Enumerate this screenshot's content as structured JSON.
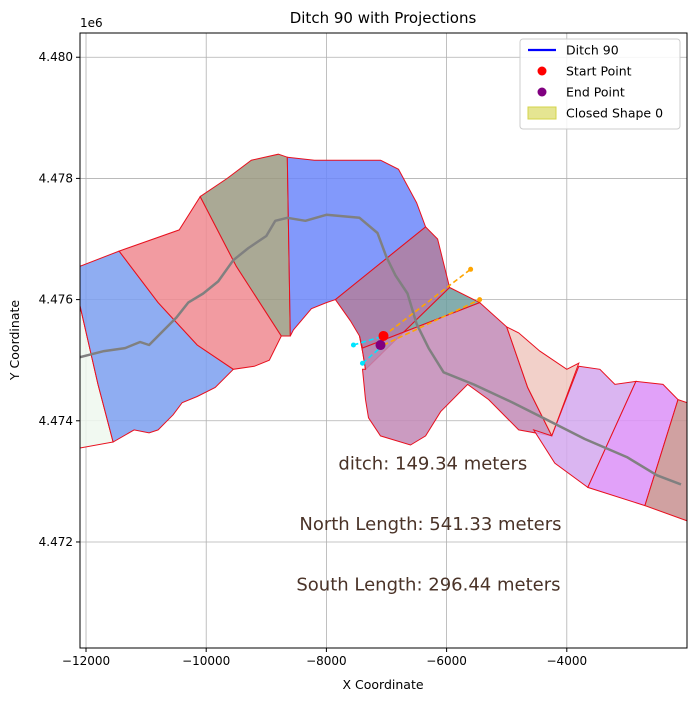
{
  "chart_data": {
    "type": "map-plot",
    "title": "Ditch 90 with Projections",
    "xlabel": "X Coordinate",
    "ylabel": "Y Coordinate",
    "y_offset_label": "1e6",
    "xlim": [
      -12100,
      -2000
    ],
    "ylim": [
      4470250,
      4480400
    ],
    "x_ticks": [
      {
        "value": -12000,
        "label": "−12000"
      },
      {
        "value": -10000,
        "label": "−10000"
      },
      {
        "value": -8000,
        "label": "−8000"
      },
      {
        "value": -6000,
        "label": "−6000"
      },
      {
        "value": -4000,
        "label": "−4000"
      }
    ],
    "y_ticks": [
      {
        "value": 4472000,
        "label": "4.472"
      },
      {
        "value": 4474000,
        "label": "4.474"
      },
      {
        "value": 4476000,
        "label": "4.476"
      },
      {
        "value": 4478000,
        "label": "4.478"
      },
      {
        "value": 4480000,
        "label": "4.480"
      }
    ],
    "grid": true,
    "legend": {
      "position": "top-right",
      "entries": [
        {
          "label": "Ditch 90",
          "kind": "line",
          "color": "#0000ff"
        },
        {
          "label": "Start Point",
          "kind": "marker",
          "color": "#ff0000"
        },
        {
          "label": "End Point",
          "kind": "marker",
          "color": "#800080"
        },
        {
          "label": "Closed Shape 0",
          "kind": "patch",
          "color": "#d4d44a"
        }
      ]
    },
    "polygons": [
      {
        "name": "poly-0",
        "color": "#eef8ee",
        "points": [
          [
            -12100,
            4475900
          ],
          [
            -11800,
            4474600
          ],
          [
            -11550,
            4473650
          ],
          [
            -12100,
            4473550
          ]
        ]
      },
      {
        "name": "poly-1",
        "color": "#7b9ff0",
        "points": [
          [
            -12100,
            4476550
          ],
          [
            -11450,
            4476800
          ],
          [
            -10800,
            4475950
          ],
          [
            -10150,
            4475250
          ],
          [
            -9550,
            4474850
          ],
          [
            -9850,
            4474550
          ],
          [
            -10150,
            4474400
          ],
          [
            -10400,
            4474300
          ],
          [
            -10550,
            4474100
          ],
          [
            -10650,
            4474000
          ],
          [
            -10800,
            4473850
          ],
          [
            -10950,
            4473800
          ],
          [
            -11200,
            4473850
          ],
          [
            -11550,
            4473650
          ],
          [
            -11800,
            4474600
          ],
          [
            -12100,
            4475900
          ]
        ]
      },
      {
        "name": "poly-2",
        "color": "#f08a90",
        "points": [
          [
            -11450,
            4476800
          ],
          [
            -10450,
            4477150
          ],
          [
            -10100,
            4477700
          ],
          [
            -9500,
            4476550
          ],
          [
            -8750,
            4475400
          ],
          [
            -8950,
            4475000
          ],
          [
            -9200,
            4474900
          ],
          [
            -9550,
            4474850
          ],
          [
            -10150,
            4475250
          ],
          [
            -10800,
            4475950
          ]
        ]
      },
      {
        "name": "poly-3",
        "color": "#9b9a82",
        "points": [
          [
            -10100,
            4477700
          ],
          [
            -9650,
            4478000
          ],
          [
            -9250,
            4478300
          ],
          [
            -8800,
            4478400
          ],
          [
            -8650,
            4478350
          ],
          [
            -8600,
            4475400
          ],
          [
            -8750,
            4475400
          ],
          [
            -9500,
            4476550
          ]
        ]
      },
      {
        "name": "poly-4",
        "color": "#6c87fa",
        "points": [
          [
            -8650,
            4478350
          ],
          [
            -8200,
            4478300
          ],
          [
            -7100,
            4478300
          ],
          [
            -6800,
            4478150
          ],
          [
            -6500,
            4477600
          ],
          [
            -6350,
            4477200
          ],
          [
            -7850,
            4476000
          ],
          [
            -8000,
            4475950
          ],
          [
            -8250,
            4475850
          ],
          [
            -8550,
            4475500
          ],
          [
            -8600,
            4475400
          ]
        ]
      },
      {
        "name": "poly-5",
        "color": "#9c6d9e",
        "points": [
          [
            -6350,
            4477200
          ],
          [
            -7850,
            4476000
          ],
          [
            -7600,
            4475650
          ],
          [
            -7450,
            4475400
          ],
          [
            -7400,
            4475150
          ],
          [
            -7350,
            4474850
          ],
          [
            -5950,
            4476200
          ],
          [
            -6050,
            4476600
          ],
          [
            -6150,
            4477000
          ]
        ]
      },
      {
        "name": "poly-6",
        "color": "#6f9fa0",
        "points": [
          [
            -5950,
            4476200
          ],
          [
            -5450,
            4475950
          ],
          [
            -7400,
            4475200
          ],
          [
            -7350,
            4474850
          ]
        ]
      },
      {
        "name": "poly-7",
        "color": "#c28ab6",
        "points": [
          [
            -5450,
            4475950
          ],
          [
            -5000,
            4475550
          ],
          [
            -4650,
            4474550
          ],
          [
            -4250,
            4473750
          ],
          [
            -4800,
            4473850
          ],
          [
            -5300,
            4474350
          ],
          [
            -5650,
            4474600
          ],
          [
            -6100,
            4474150
          ],
          [
            -6350,
            4473750
          ],
          [
            -6600,
            4473600
          ],
          [
            -7100,
            4473750
          ],
          [
            -7300,
            4474050
          ],
          [
            -7350,
            4474350
          ],
          [
            -7400,
            4474850
          ],
          [
            -7350,
            4474850
          ],
          [
            -7400,
            4475150
          ],
          [
            -7450,
            4475400
          ],
          [
            -7400,
            4475200
          ]
        ]
      },
      {
        "name": "poly-8",
        "color": "#f0c8c0",
        "points": [
          [
            -5000,
            4475550
          ],
          [
            -4800,
            4475450
          ],
          [
            -4450,
            4475150
          ],
          [
            -4000,
            4474850
          ],
          [
            -3800,
            4474950
          ],
          [
            -4250,
            4473750
          ],
          [
            -4650,
            4474550
          ],
          [
            -5000,
            4475550
          ]
        ]
      },
      {
        "name": "poly-9",
        "color": "#d4a8ee",
        "points": [
          [
            -3800,
            4474900
          ],
          [
            -3450,
            4474850
          ],
          [
            -3200,
            4474600
          ],
          [
            -2850,
            4474650
          ],
          [
            -3650,
            4472900
          ],
          [
            -4200,
            4473300
          ],
          [
            -4550,
            4473850
          ],
          [
            -4250,
            4473750
          ]
        ]
      },
      {
        "name": "poly-10",
        "color": "#dc90f8",
        "points": [
          [
            -2850,
            4474650
          ],
          [
            -2400,
            4474600
          ],
          [
            -2150,
            4474350
          ],
          [
            -2700,
            4472600
          ],
          [
            -3650,
            4472900
          ]
        ]
      },
      {
        "name": "poly-11",
        "color": "#c89090",
        "points": [
          [
            -2150,
            4474350
          ],
          [
            -2000,
            4474300
          ],
          [
            -2000,
            4472350
          ],
          [
            -2700,
            4472600
          ]
        ]
      }
    ],
    "road_line": {
      "color": "#808080",
      "points": [
        [
          -12100,
          4475050
        ],
        [
          -11700,
          4475150
        ],
        [
          -11350,
          4475200
        ],
        [
          -11100,
          4475300
        ],
        [
          -10950,
          4475250
        ],
        [
          -10700,
          4475500
        ],
        [
          -10500,
          4475700
        ],
        [
          -10300,
          4475950
        ],
        [
          -10050,
          4476100
        ],
        [
          -9800,
          4476300
        ],
        [
          -9550,
          4476650
        ],
        [
          -9300,
          4476850
        ],
        [
          -9000,
          4477050
        ],
        [
          -8850,
          4477300
        ],
        [
          -8650,
          4477350
        ],
        [
          -8350,
          4477300
        ],
        [
          -8000,
          4477400
        ],
        [
          -7450,
          4477350
        ],
        [
          -7150,
          4477100
        ],
        [
          -7000,
          4476700
        ],
        [
          -6850,
          4476400
        ],
        [
          -6650,
          4476100
        ],
        [
          -6500,
          4475600
        ],
        [
          -6300,
          4475200
        ],
        [
          -6050,
          4474800
        ],
        [
          -5550,
          4474600
        ],
        [
          -4900,
          4474300
        ],
        [
          -4300,
          4474000
        ],
        [
          -3700,
          4473700
        ],
        [
          -3000,
          4473400
        ],
        [
          -2500,
          4473100
        ],
        [
          -2100,
          4472950
        ]
      ]
    },
    "projection_lines": [
      {
        "name": "north-projection",
        "color": "#ffa500",
        "points": [
          [
            -7050,
            4475400
          ],
          [
            -5600,
            4476500
          ]
        ]
      },
      {
        "name": "south-projection",
        "color": "#ffa500",
        "points": [
          [
            -7050,
            4475250
          ],
          [
            -5450,
            4476000
          ]
        ]
      },
      {
        "name": "start-extension",
        "color": "#00e5ff",
        "points": [
          [
            -7550,
            4475250
          ],
          [
            -7050,
            4475400
          ]
        ]
      },
      {
        "name": "end-extension",
        "color": "#00e5ff",
        "points": [
          [
            -7400,
            4474950
          ],
          [
            -7050,
            4475250
          ]
        ]
      }
    ],
    "projection_points": [
      {
        "color": "#ffa500",
        "x": -5600,
        "y": 4476500
      },
      {
        "color": "#ffa500",
        "x": -5450,
        "y": 4476000
      },
      {
        "color": "#00e5ff",
        "x": -7550,
        "y": 4475250
      },
      {
        "color": "#00e5ff",
        "x": -7400,
        "y": 4474950
      }
    ],
    "start_point": {
      "x": -7050,
      "y": 4475400,
      "color": "#ff0000"
    },
    "end_point": {
      "x": -7100,
      "y": 4475250,
      "color": "#800080"
    },
    "annotations": [
      {
        "text": "ditch: 149.34 meters",
        "x": -7800,
        "y": 4473200
      },
      {
        "text": "North Length: 541.33 meters",
        "x": -8450,
        "y": 4472200
      },
      {
        "text": "South Length: 296.44 meters",
        "x": -8500,
        "y": 4471200
      }
    ]
  }
}
